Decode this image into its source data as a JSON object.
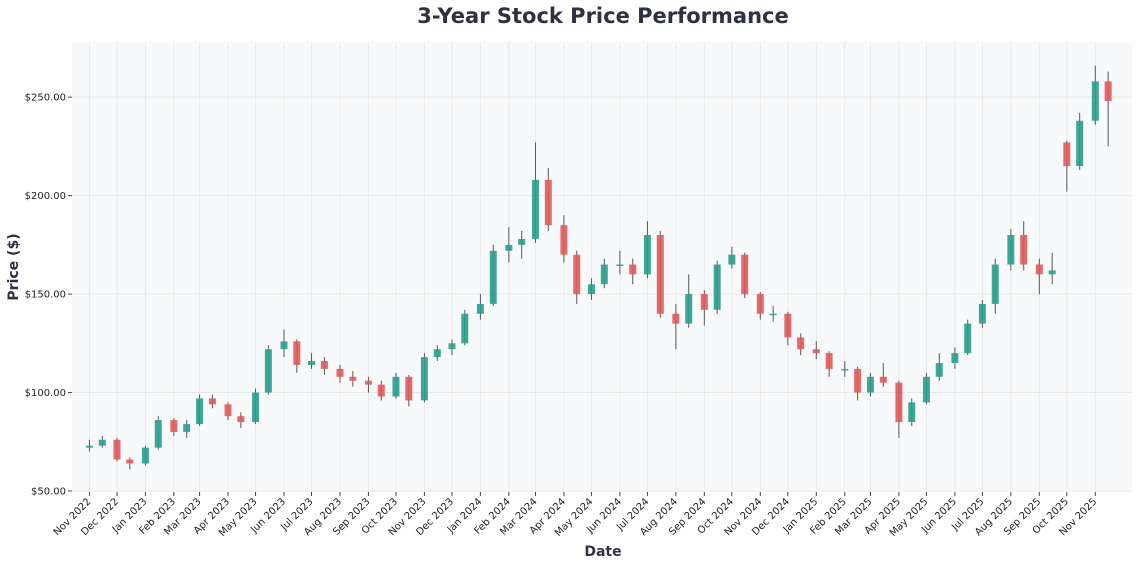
{
  "chart_data": {
    "type": "candlestick",
    "title": "3-Year Stock Price Performance",
    "xlabel": "Date",
    "ylabel": "Price ($)",
    "ylim": [
      49.5,
      278
    ],
    "xlim": [
      "2022-10-13",
      "2025-12-11"
    ],
    "grid": true,
    "yticks": [
      50,
      100,
      150,
      200,
      250
    ],
    "ytick_labels": [
      "$50.00",
      "$100.00",
      "$150.00",
      "$200.00",
      "$250.00"
    ],
    "xtick_labels": [
      "Nov 2022",
      "Dec 2022",
      "Jan 2023",
      "Feb 2023",
      "Mar 2023",
      "Apr 2023",
      "May 2023",
      "Jun 2023",
      "Jul 2023",
      "Aug 2023",
      "Sep 2023",
      "Oct 2023",
      "Nov 2023",
      "Dec 2023",
      "Jan 2024",
      "Feb 2024",
      "Mar 2024",
      "Apr 2024",
      "May 2024",
      "Jun 2024",
      "Jul 2024",
      "Aug 2024",
      "Sep 2024",
      "Oct 2024",
      "Nov 2024",
      "Dec 2024",
      "Jan 2025",
      "Feb 2025",
      "Mar 2025",
      "Apr 2025",
      "May 2025",
      "Jun 2025",
      "Jul 2025",
      "Aug 2025",
      "Sep 2025",
      "Oct 2025",
      "Nov 2025"
    ],
    "xtick_dates": [
      "2022-11-01",
      "2022-12-01",
      "2023-01-01",
      "2023-02-01",
      "2023-03-01",
      "2023-04-01",
      "2023-05-01",
      "2023-06-01",
      "2023-07-01",
      "2023-08-01",
      "2023-09-01",
      "2023-10-01",
      "2023-11-01",
      "2023-12-01",
      "2024-01-01",
      "2024-02-01",
      "2024-03-01",
      "2024-04-01",
      "2024-05-01",
      "2024-06-01",
      "2024-07-01",
      "2024-08-01",
      "2024-09-01",
      "2024-10-01",
      "2024-11-01",
      "2024-12-01",
      "2025-01-01",
      "2025-02-01",
      "2025-03-01",
      "2025-04-01",
      "2025-05-01",
      "2025-06-01",
      "2025-07-01",
      "2025-08-01",
      "2025-09-01",
      "2025-10-01",
      "2025-11-01"
    ],
    "colors": {
      "up": "#2a9d8f",
      "down": "#e05a5a",
      "wick": "#555555",
      "plot_bg": "#f8f9fa",
      "grid": "#e6e6e6"
    },
    "ohlc_columns": [
      "date",
      "open",
      "high",
      "low",
      "close"
    ],
    "candles": [
      [
        "2022-11-01",
        72,
        76,
        70,
        73
      ],
      [
        "2022-11-15",
        73,
        78,
        72,
        76
      ],
      [
        "2022-12-01",
        76,
        77,
        65,
        66
      ],
      [
        "2022-12-15",
        66,
        67,
        61,
        64
      ],
      [
        "2023-01-01",
        64,
        73,
        63,
        72
      ],
      [
        "2023-01-15",
        72,
        88,
        71,
        86
      ],
      [
        "2023-02-01",
        86,
        87,
        78,
        80
      ],
      [
        "2023-02-15",
        80,
        86,
        77,
        84
      ],
      [
        "2023-03-01",
        84,
        99,
        83,
        97
      ],
      [
        "2023-03-15",
        97,
        99,
        92,
        94
      ],
      [
        "2023-04-01",
        94,
        95,
        86,
        88
      ],
      [
        "2023-04-15",
        88,
        90,
        82,
        85
      ],
      [
        "2023-05-01",
        85,
        102,
        84,
        100
      ],
      [
        "2023-05-15",
        100,
        124,
        99,
        122
      ],
      [
        "2023-06-01",
        122,
        132,
        118,
        126
      ],
      [
        "2023-06-15",
        126,
        127,
        110,
        114
      ],
      [
        "2023-07-01",
        114,
        120,
        112,
        116
      ],
      [
        "2023-07-15",
        116,
        118,
        109,
        112
      ],
      [
        "2023-08-01",
        112,
        114,
        105,
        108
      ],
      [
        "2023-08-15",
        108,
        111,
        103,
        106
      ],
      [
        "2023-09-01",
        106,
        108,
        100,
        104
      ],
      [
        "2023-09-15",
        104,
        106,
        96,
        98
      ],
      [
        "2023-10-01",
        98,
        110,
        97,
        108
      ],
      [
        "2023-10-15",
        108,
        109,
        93,
        96
      ],
      [
        "2023-11-01",
        96,
        120,
        95,
        118
      ],
      [
        "2023-11-15",
        118,
        124,
        116,
        122
      ],
      [
        "2023-12-01",
        122,
        127,
        119,
        125
      ],
      [
        "2023-12-15",
        125,
        142,
        124,
        140
      ],
      [
        "2024-01-01",
        140,
        150,
        137,
        145
      ],
      [
        "2024-01-15",
        145,
        175,
        144,
        172
      ],
      [
        "2024-02-01",
        172,
        184,
        166,
        175
      ],
      [
        "2024-02-15",
        175,
        182,
        168,
        178
      ],
      [
        "2024-03-01",
        178,
        227,
        176,
        208
      ],
      [
        "2024-03-15",
        208,
        214,
        182,
        185
      ],
      [
        "2024-04-01",
        185,
        190,
        166,
        170
      ],
      [
        "2024-04-15",
        170,
        172,
        145,
        150
      ],
      [
        "2024-05-01",
        150,
        158,
        147,
        155
      ],
      [
        "2024-05-15",
        155,
        168,
        153,
        165
      ],
      [
        "2024-06-01",
        165,
        172,
        160,
        165
      ],
      [
        "2024-06-15",
        165,
        168,
        155,
        160
      ],
      [
        "2024-07-01",
        160,
        187,
        158,
        180
      ],
      [
        "2024-07-15",
        180,
        182,
        138,
        140
      ],
      [
        "2024-08-01",
        140,
        145,
        122,
        135
      ],
      [
        "2024-08-15",
        135,
        160,
        133,
        150
      ],
      [
        "2024-09-01",
        150,
        152,
        134,
        142
      ],
      [
        "2024-09-15",
        142,
        167,
        140,
        165
      ],
      [
        "2024-10-01",
        165,
        174,
        163,
        170
      ],
      [
        "2024-10-15",
        170,
        171,
        148,
        150
      ],
      [
        "2024-11-01",
        150,
        151,
        137,
        140
      ],
      [
        "2024-11-15",
        140,
        144,
        136,
        140
      ],
      [
        "2024-12-01",
        140,
        141,
        124,
        128
      ],
      [
        "2024-12-15",
        128,
        130,
        119,
        122
      ],
      [
        "2025-01-01",
        122,
        126,
        117,
        120
      ],
      [
        "2025-01-15",
        120,
        121,
        108,
        112
      ],
      [
        "2025-02-01",
        112,
        116,
        108,
        112
      ],
      [
        "2025-02-15",
        112,
        113,
        96,
        100
      ],
      [
        "2025-03-01",
        100,
        110,
        98,
        108
      ],
      [
        "2025-03-15",
        108,
        115,
        103,
        105
      ],
      [
        "2025-04-01",
        105,
        106,
        77,
        85
      ],
      [
        "2025-04-15",
        85,
        97,
        83,
        95
      ],
      [
        "2025-05-01",
        95,
        110,
        94,
        108
      ],
      [
        "2025-05-15",
        108,
        120,
        106,
        115
      ],
      [
        "2025-06-01",
        115,
        123,
        112,
        120
      ],
      [
        "2025-06-15",
        120,
        137,
        119,
        135
      ],
      [
        "2025-07-01",
        135,
        147,
        133,
        145
      ],
      [
        "2025-07-15",
        145,
        168,
        140,
        165
      ],
      [
        "2025-08-01",
        165,
        183,
        162,
        180
      ],
      [
        "2025-08-15",
        180,
        187,
        162,
        165
      ],
      [
        "2025-09-01",
        165,
        168,
        150,
        160
      ],
      [
        "2025-09-15",
        160,
        171,
        155,
        162
      ],
      [
        "2025-10-01",
        227,
        228,
        202,
        215
      ],
      [
        "2025-10-15",
        215,
        242,
        213,
        238
      ],
      [
        "2025-11-01",
        238,
        266,
        236,
        258
      ],
      [
        "2025-11-15",
        258,
        263,
        225,
        248
      ]
    ]
  }
}
